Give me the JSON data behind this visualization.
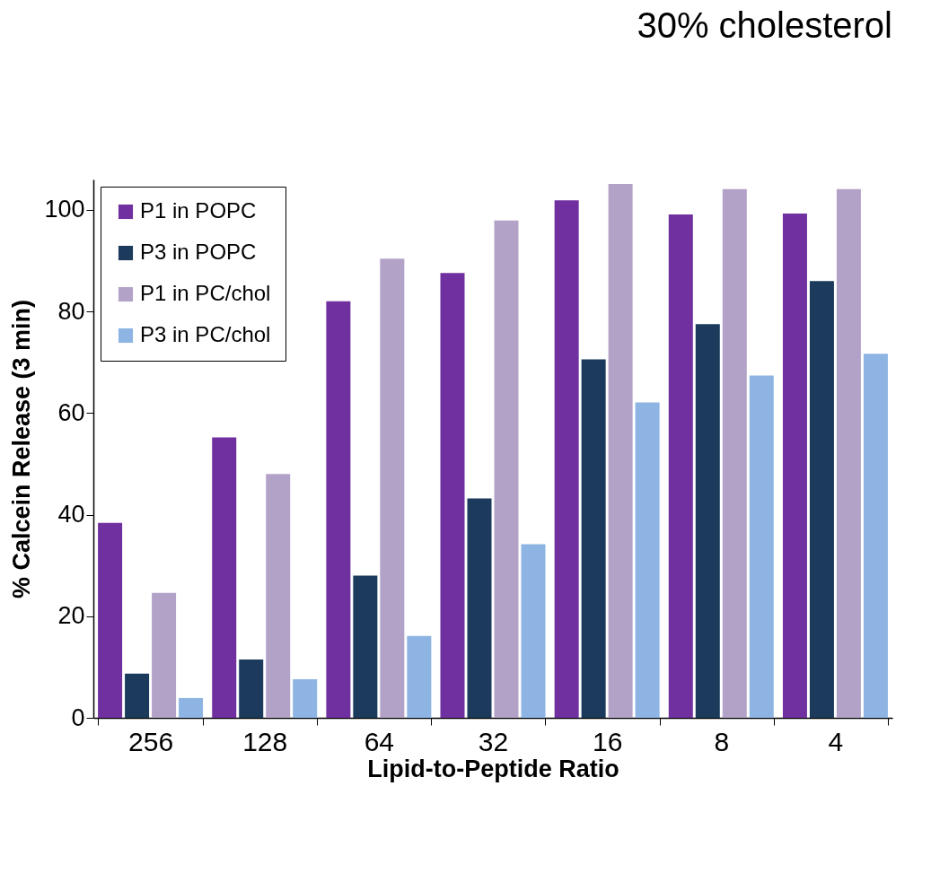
{
  "chart_data": {
    "type": "bar",
    "title": "30% cholesterol",
    "xlabel": "Lipid-to-Peptide Ratio",
    "ylabel": "% Calcein Release (3 min)",
    "categories": [
      "256",
      "128",
      "64",
      "32",
      "16",
      "8",
      "4"
    ],
    "series": [
      {
        "name": "P1 in POPC",
        "color": "#7030a0",
        "values": [
          38.4,
          55.2,
          82,
          87.6,
          101.9,
          99.1,
          99.3
        ]
      },
      {
        "name": "P3 in POPC",
        "color": "#1b3a5c",
        "values": [
          8.7,
          11.5,
          28,
          43.2,
          70.6,
          77.5,
          86
        ]
      },
      {
        "name": "P1 in PC/chol",
        "color": "#b3a2c7",
        "values": [
          24.6,
          48,
          90.4,
          97.9,
          105.1,
          104.1,
          104.1
        ]
      },
      {
        "name": "P3 in PC/chol",
        "color": "#8db4e2",
        "values": [
          3.9,
          7.6,
          16.1,
          34.2,
          62.1,
          67.4,
          71.7
        ]
      }
    ],
    "ylim": [
      0,
      106
    ],
    "yticks": [
      0,
      20,
      40,
      60,
      80,
      100
    ],
    "grid": false,
    "legend": "top left"
  }
}
